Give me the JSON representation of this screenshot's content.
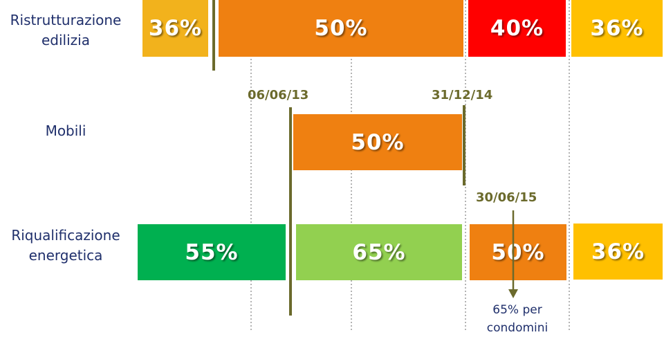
{
  "rows": [
    {
      "label": "Ristrutturazione edilizia",
      "segments": [
        {
          "text": "36%",
          "color": "#f2b21c"
        },
        {
          "text": "50%",
          "color": "#ef8011"
        },
        {
          "text": "40%",
          "color": "#ff0000"
        },
        {
          "text": "36%",
          "color": "#ffc000"
        }
      ]
    },
    {
      "label": "Mobili",
      "segments": [
        {
          "text": "50%",
          "color": "#ef8011"
        }
      ]
    },
    {
      "label": "Riqualificazione energetica",
      "segments": [
        {
          "text": "55%",
          "color": "#00b050"
        },
        {
          "text": "65%",
          "color": "#92d050"
        },
        {
          "text": "50%",
          "color": "#ef8011"
        },
        {
          "text": "36%",
          "color": "#ffc000"
        }
      ]
    }
  ],
  "dates": [
    "06/06/13",
    "31/12/14",
    "30/06/15"
  ],
  "note": "65% per condomini"
}
